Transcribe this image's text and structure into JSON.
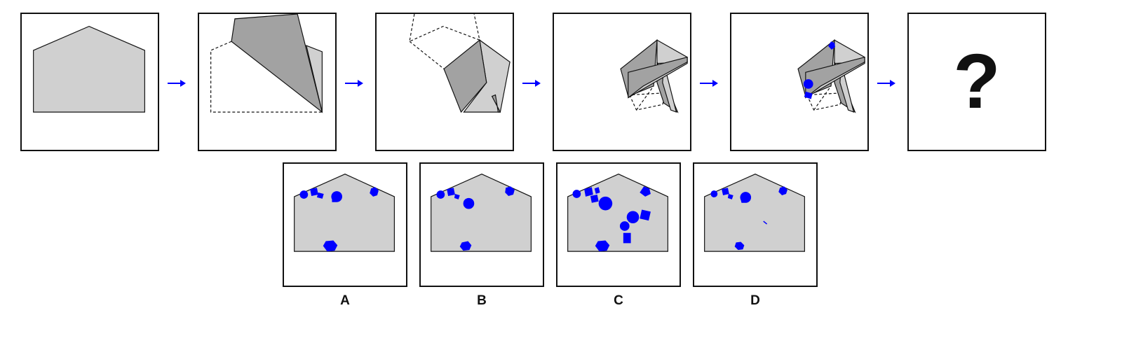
{
  "colors": {
    "paper": "#d0d0d0",
    "fold": "#a2a2a2",
    "marker": "#0000ff",
    "arrow": "#0000ff",
    "outline": "#111111"
  },
  "question_mark": "?",
  "options": [
    {
      "label": "A"
    },
    {
      "label": "B"
    },
    {
      "label": "C"
    },
    {
      "label": "D"
    }
  ]
}
